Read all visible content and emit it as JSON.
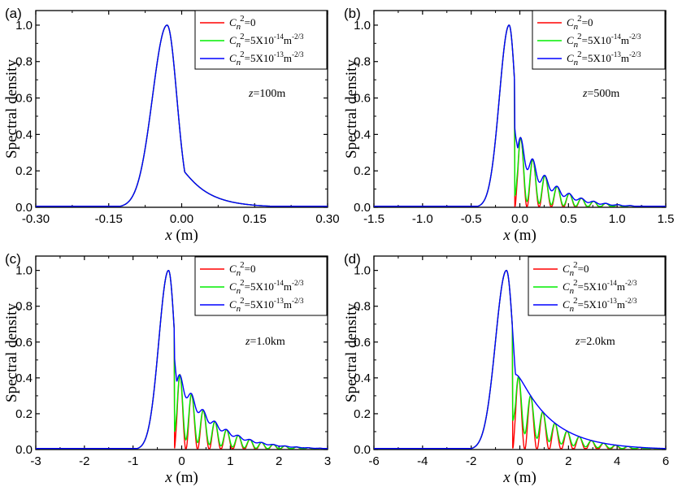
{
  "chart_data": [
    {
      "type": "line",
      "panel_label": "(a)",
      "ylabel": "Spectral density",
      "xlabel_var": "x",
      "xlabel_unit": " (m)",
      "xlim": [
        -0.3,
        0.3
      ],
      "ylim": [
        0,
        1.08
      ],
      "x_ticks": [
        "-0.30",
        "-0.15",
        "0.00",
        "0.15",
        "0.30"
      ],
      "y_ticks": [
        "0.0",
        "0.2",
        "0.4",
        "0.6",
        "0.8",
        "1.0"
      ],
      "annotation": {
        "var": "z",
        "text": "=100m"
      },
      "curve": {
        "peak_x": -0.03,
        "width_left": 0.03,
        "width_right": 0.02,
        "tail": 0.26,
        "tail_width": 0.05,
        "period": 0.065,
        "osc": 0.0
      },
      "series": [
        {
          "name": "Cn2=0",
          "color": "#ff0000",
          "mod": 1.0
        },
        {
          "name": "Cn2=5X10^-14",
          "color": "#00ee00",
          "mod": 1.0
        },
        {
          "name": "Cn2=5X10^-13",
          "color": "#0000ff",
          "mod": 1.0
        }
      ],
      "legend": [
        {
          "var": "C",
          "sub": "n",
          "sup": "2",
          "text": "=0"
        },
        {
          "var": "C",
          "sub": "n",
          "sup": "2",
          "text": "=5X10",
          "exp": "-14",
          "unit": "m",
          "unit_exp": "-2/3"
        },
        {
          "var": "C",
          "sub": "n",
          "sup": "2",
          "text": "=5X10",
          "exp": "-13",
          "unit": "m",
          "unit_exp": "-2/3"
        }
      ]
    },
    {
      "type": "line",
      "panel_label": "(b)",
      "ylabel": "Spectral density",
      "xlabel_var": "x",
      "xlabel_unit": " (m)",
      "xlim": [
        -1.5,
        1.5
      ],
      "ylim": [
        0,
        1.08
      ],
      "x_ticks": [
        "-1.5",
        "-1.0",
        "-0.5",
        "0.0",
        "0.5",
        "1.0",
        "1.5"
      ],
      "y_ticks": [
        "0.0",
        "0.2",
        "0.4",
        "0.6",
        "0.8",
        "1.0"
      ],
      "annotation": {
        "var": "z",
        "text": "=500m"
      },
      "curve": {
        "peak_x": -0.11,
        "width_left": 0.1,
        "width_right": 0.065,
        "tail": 0.37,
        "tail_width": 0.3,
        "period": 0.125,
        "osc": 1.0
      },
      "series": [
        {
          "name": "Cn2=0",
          "color": "#ff0000",
          "mod": 1.0
        },
        {
          "name": "Cn2=5X10^-14",
          "color": "#00ee00",
          "mod": 0.9
        },
        {
          "name": "Cn2=5X10^-13",
          "color": "#0000ff",
          "mod": 0.35
        }
      ],
      "legend": [
        {
          "var": "C",
          "sub": "n",
          "sup": "2",
          "text": "=0"
        },
        {
          "var": "C",
          "sub": "n",
          "sup": "2",
          "text": "=5X10",
          "exp": "-14",
          "unit": "m",
          "unit_exp": "-2/3"
        },
        {
          "var": "C",
          "sub": "n",
          "sup": "2",
          "text": "=5X10",
          "exp": "-13",
          "unit": "m",
          "unit_exp": "-2/3"
        }
      ]
    },
    {
      "type": "line",
      "panel_label": "(c)",
      "ylabel": "Spectral density",
      "xlabel_var": "x",
      "xlabel_unit": " (m)",
      "xlim": [
        -3,
        3
      ],
      "ylim": [
        0,
        1.08
      ],
      "x_ticks": [
        "-3",
        "-2",
        "-1",
        "0",
        "1",
        "2",
        "3"
      ],
      "y_ticks": [
        "0.0",
        "0.2",
        "0.4",
        "0.6",
        "0.8",
        "1.0"
      ],
      "annotation": {
        "var": "z",
        "text": "=1.0km"
      },
      "curve": {
        "peak_x": -0.27,
        "width_left": 0.2,
        "width_right": 0.13,
        "tail": 0.38,
        "tail_width": 0.7,
        "period": 0.24,
        "osc": 1.0
      },
      "series": [
        {
          "name": "Cn2=0",
          "color": "#ff0000",
          "mod": 1.0
        },
        {
          "name": "Cn2=5X10^-14",
          "color": "#00ee00",
          "mod": 0.85
        },
        {
          "name": "Cn2=5X10^-13",
          "color": "#0000ff",
          "mod": 0.2
        }
      ],
      "legend": [
        {
          "var": "C",
          "sub": "n",
          "sup": "2",
          "text": "=0"
        },
        {
          "var": "C",
          "sub": "n",
          "sup": "2",
          "text": "=5X10",
          "exp": "-14",
          "unit": "m",
          "unit_exp": "-2/3"
        },
        {
          "var": "C",
          "sub": "n",
          "sup": "2",
          "text": "=5X10",
          "exp": "-13",
          "unit": "m",
          "unit_exp": "-2/3"
        }
      ]
    },
    {
      "type": "line",
      "panel_label": "(d)",
      "ylabel": "Spectral density",
      "xlabel_var": "x",
      "xlabel_unit": " (m)",
      "xlim": [
        -6,
        6
      ],
      "ylim": [
        0,
        1.08
      ],
      "x_ticks": [
        "-6",
        "-4",
        "-2",
        "0",
        "2",
        "4",
        "6"
      ],
      "y_ticks": [
        "0.0",
        "0.2",
        "0.4",
        "0.6",
        "0.8",
        "1.0"
      ],
      "annotation": {
        "var": "z",
        "text": "=2.0km"
      },
      "curve": {
        "peak_x": -0.55,
        "width_left": 0.45,
        "width_right": 0.28,
        "tail": 0.38,
        "tail_width": 1.4,
        "period": 0.5,
        "osc": 1.0
      },
      "series": [
        {
          "name": "Cn2=0",
          "color": "#ff0000",
          "mod": 1.0
        },
        {
          "name": "Cn2=5X10^-14",
          "color": "#00ee00",
          "mod": 0.75
        },
        {
          "name": "Cn2=5X10^-13",
          "color": "#0000ff",
          "mod": 0.0
        }
      ],
      "legend": [
        {
          "var": "C",
          "sub": "n",
          "sup": "2",
          "text": "=0"
        },
        {
          "var": "C",
          "sub": "n",
          "sup": "2",
          "text": "=5X10",
          "exp": "-14",
          "unit": "m",
          "unit_exp": "-2/3"
        },
        {
          "var": "C",
          "sub": "n",
          "sup": "2",
          "text": "=5X10",
          "exp": "-13",
          "unit": "m",
          "unit_exp": "-2/3"
        }
      ]
    }
  ]
}
